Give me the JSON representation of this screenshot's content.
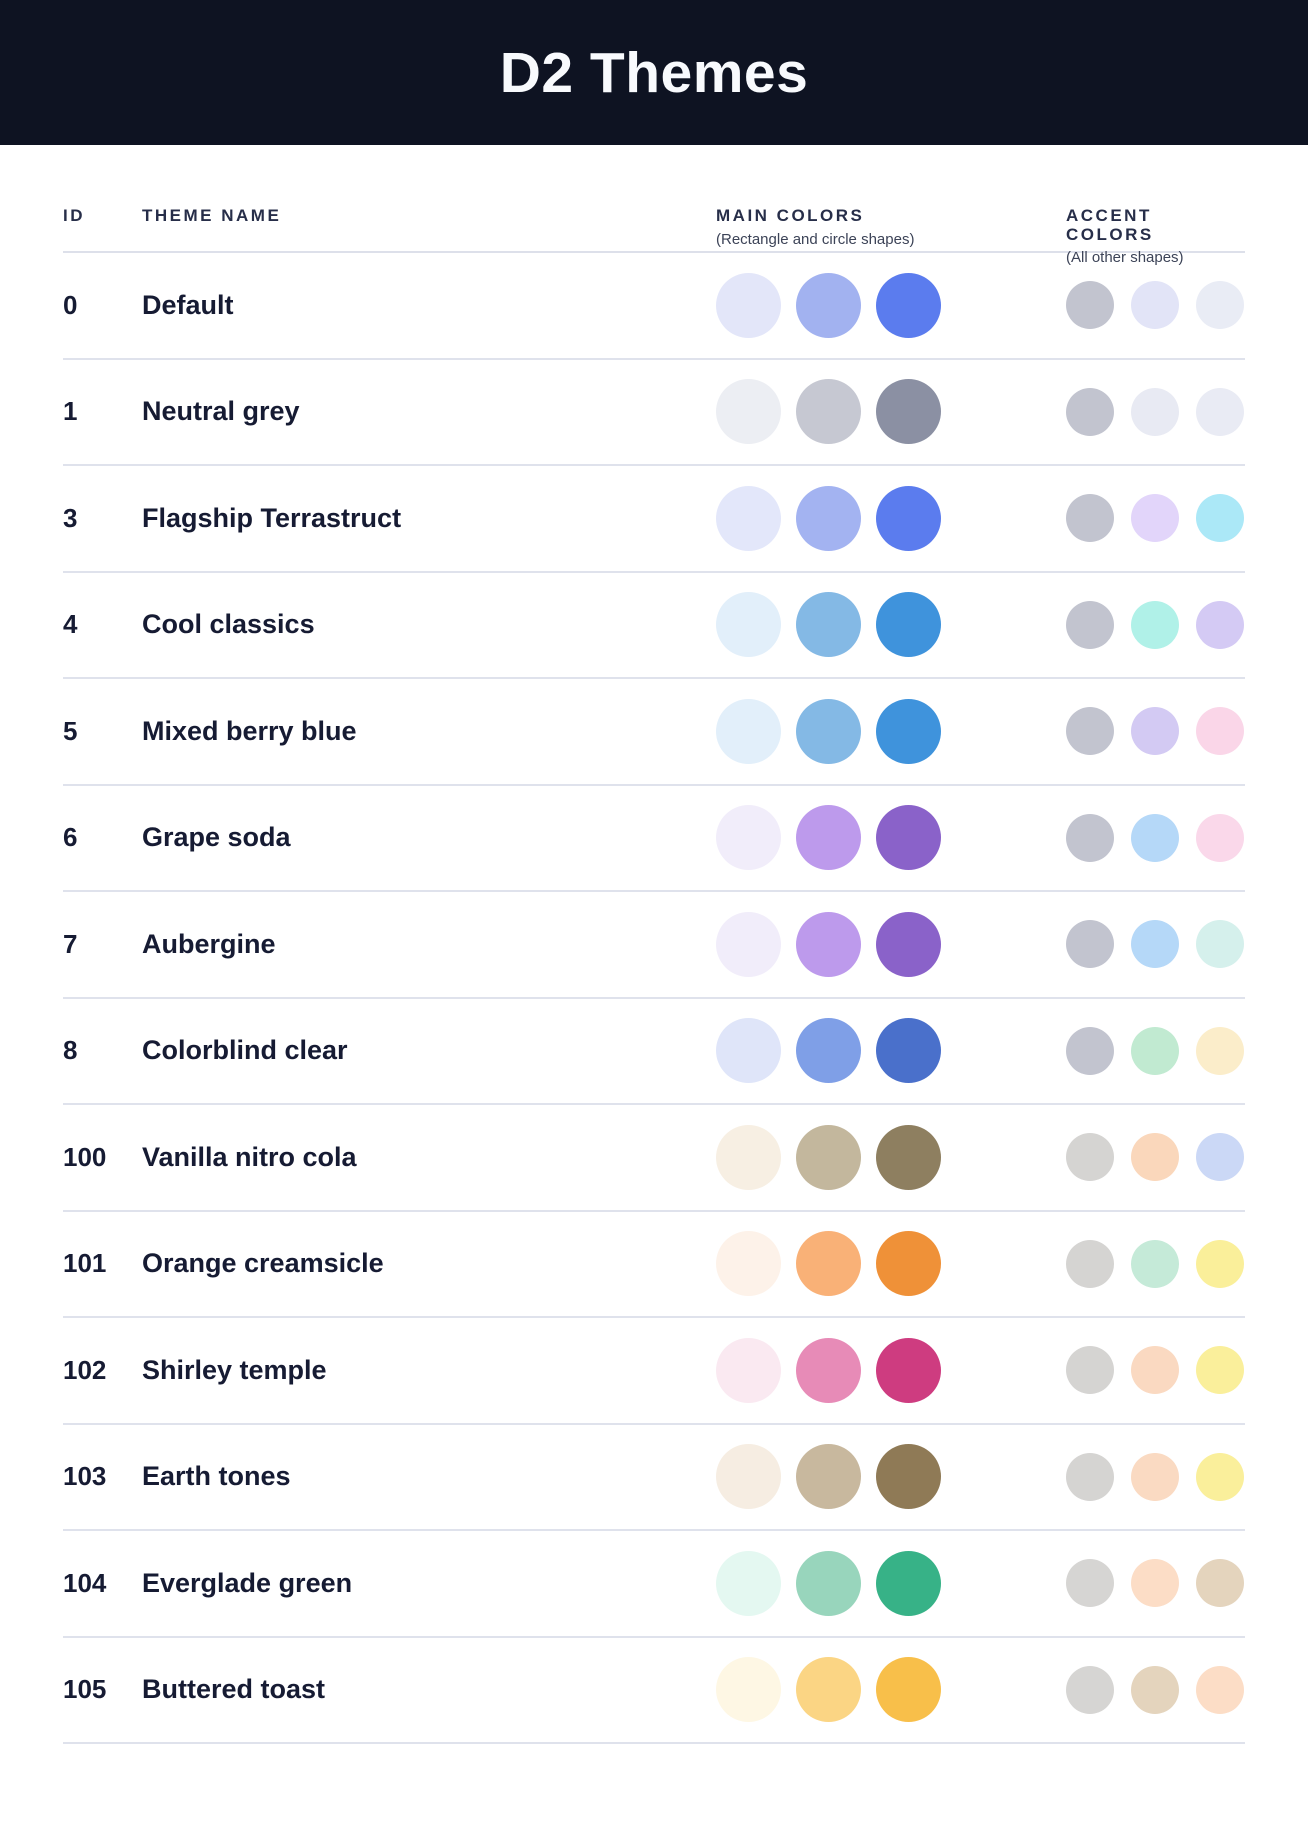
{
  "banner": {
    "title": "D2 Themes",
    "background": "#0E1322",
    "title_color": "#F8FAFD"
  },
  "table": {
    "headers": {
      "id": "ID",
      "name": "THEME NAME",
      "main": "MAIN COLORS",
      "main_sub": "(Rectangle and circle shapes)",
      "accent": "ACCENT COLORS",
      "accent_sub": "(All other shapes)"
    },
    "rows": [
      {
        "id": "0",
        "name": "Default",
        "main": [
          "#E3E6F9",
          "#A2B2F0",
          "#5B7CEE"
        ],
        "accent": [
          "#C2C4CF",
          "#E2E4F7",
          "#E9ECF5"
        ]
      },
      {
        "id": "1",
        "name": "Neutral grey",
        "main": [
          "#ECEEF3",
          "#C6C8D2",
          "#8B90A3"
        ],
        "accent": [
          "#C2C4CF",
          "#E8EAF3",
          "#E9EBF4"
        ]
      },
      {
        "id": "3",
        "name": "Flagship Terrastruct",
        "main": [
          "#E3E7FA",
          "#A3B3F1",
          "#5B7CEE"
        ],
        "accent": [
          "#C2C4CF",
          "#E2D5FA",
          "#ABE8F7"
        ]
      },
      {
        "id": "4",
        "name": "Cool classics",
        "main": [
          "#E2EFFA",
          "#84B9E5",
          "#3F93DC"
        ],
        "accent": [
          "#C2C4CF",
          "#B0F1E8",
          "#D4CAF4"
        ]
      },
      {
        "id": "5",
        "name": "Mixed berry blue",
        "main": [
          "#E2EFFA",
          "#84B9E5",
          "#3F93DC"
        ],
        "accent": [
          "#C2C4CF",
          "#D3CAF3",
          "#FAD6E8"
        ]
      },
      {
        "id": "6",
        "name": "Grape soda",
        "main": [
          "#F1EDFA",
          "#BD9AEC",
          "#8A62C9"
        ],
        "accent": [
          "#C2C4CF",
          "#B5D8F8",
          "#FAD8EA"
        ]
      },
      {
        "id": "7",
        "name": "Aubergine",
        "main": [
          "#F1EDFA",
          "#BD9AEC",
          "#8A62C9"
        ],
        "accent": [
          "#C2C4CF",
          "#B5D8F8",
          "#D5F0EC"
        ]
      },
      {
        "id": "8",
        "name": "Colorblind clear",
        "main": [
          "#DFE5F9",
          "#7F9FE7",
          "#4A70CB"
        ],
        "accent": [
          "#C2C4CF",
          "#C1EAD1",
          "#FBEDCA"
        ]
      },
      {
        "id": "100",
        "name": "Vanilla nitro cola",
        "main": [
          "#F7EFE3",
          "#C3B79D",
          "#8E7F60"
        ],
        "accent": [
          "#D5D4D2",
          "#FAD7BB",
          "#CBD8F6"
        ]
      },
      {
        "id": "101",
        "name": "Orange creamsicle",
        "main": [
          "#FDF2E9",
          "#F9B177",
          "#EF9138"
        ],
        "accent": [
          "#D5D4D2",
          "#C5EAD8",
          "#FAEF9A"
        ]
      },
      {
        "id": "102",
        "name": "Shirley temple",
        "main": [
          "#FAE9F1",
          "#E78BB7",
          "#CE3C80"
        ],
        "accent": [
          "#D5D4D2",
          "#FAD9C1",
          "#FAEF9B"
        ]
      },
      {
        "id": "103",
        "name": "Earth tones",
        "main": [
          "#F6EDE2",
          "#C8B89E",
          "#8F7A56"
        ],
        "accent": [
          "#D5D4D2",
          "#FADAC2",
          "#FAEF9B"
        ]
      },
      {
        "id": "104",
        "name": "Everglade green",
        "main": [
          "#E4F8F1",
          "#98D5BC",
          "#37B287"
        ],
        "accent": [
          "#D6D5D3",
          "#FCDDC6",
          "#E4D4BD"
        ]
      },
      {
        "id": "105",
        "name": "Buttered toast",
        "main": [
          "#FEF7E4",
          "#FBD584",
          "#F8BF4A"
        ],
        "accent": [
          "#D6D5D3",
          "#E4D4BD",
          "#FCDDC6"
        ]
      }
    ]
  }
}
